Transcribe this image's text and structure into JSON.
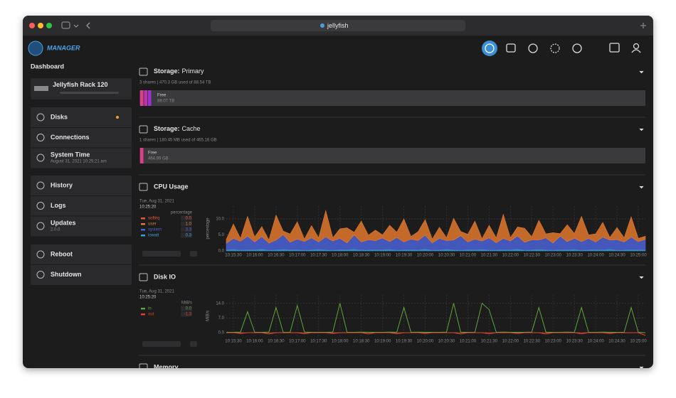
{
  "browser": {
    "url": "jellyfish"
  },
  "sidebar": {
    "brand": "MANAGER",
    "title": "Dashboard",
    "device": "Jellyfish Rack 120",
    "groups": [
      {
        "items": [
          {
            "label": "Disks"
          },
          {
            "label": "Connections"
          },
          {
            "label": "System Time",
            "sub": "August 31, 2021 10:25:21 am"
          }
        ]
      },
      {
        "items": [
          {
            "label": "History"
          },
          {
            "label": "Logs"
          },
          {
            "label": "Updates",
            "sub": "2.0.0"
          }
        ]
      },
      {
        "items": [
          {
            "label": "Reboot"
          },
          {
            "label": "Shutdown"
          }
        ]
      }
    ]
  },
  "storage": [
    {
      "prefix": "Storage:",
      "name": "Primary",
      "summary": "3 shares | 470.3 GB used of 88.54 TB",
      "free_label": "Free",
      "free_value": "88.07 TB"
    },
    {
      "prefix": "Storage:",
      "name": "Cache",
      "summary": "1 shares | 180.45 MB used of 465.16 GB",
      "free_label": "Free",
      "free_value": "464.99 GB"
    }
  ],
  "cpu": {
    "title": "CPU Usage",
    "date": "Tue, Aug 31, 2021",
    "time": "10:25:20",
    "unit": "percentage",
    "ylabel": "percentage",
    "ylim": [
      0,
      14
    ],
    "yticks": [
      {
        "value": 0,
        "label": "0.0"
      },
      {
        "value": 5,
        "label": "5.0"
      },
      {
        "value": 10,
        "label": "10.0"
      }
    ],
    "xlim": [
      0,
      59
    ],
    "xticks": [
      {
        "value": 1,
        "label": "10:15:30"
      },
      {
        "value": 4,
        "label": "10:16:00"
      },
      {
        "value": 7,
        "label": "10:16:30"
      },
      {
        "value": 10,
        "label": "10:17:00"
      },
      {
        "value": 13,
        "label": "10:17:30"
      },
      {
        "value": 16,
        "label": "10:18:00"
      },
      {
        "value": 19,
        "label": "10:18:30"
      },
      {
        "value": 22,
        "label": "10:19:00"
      },
      {
        "value": 25,
        "label": "10:19:30"
      },
      {
        "value": 28,
        "label": "10:20:00"
      },
      {
        "value": 31,
        "label": "10:20:30"
      },
      {
        "value": 34,
        "label": "10:21:00"
      },
      {
        "value": 37,
        "label": "10:21:30"
      },
      {
        "value": 40,
        "label": "10:22:00"
      },
      {
        "value": 43,
        "label": "10:22:30"
      },
      {
        "value": 46,
        "label": "10:23:00"
      },
      {
        "value": 49,
        "label": "10:23:30"
      },
      {
        "value": 52,
        "label": "10:24:00"
      },
      {
        "value": 55,
        "label": "10:24:30"
      },
      {
        "value": 58,
        "label": "10:25:00"
      }
    ],
    "series": [
      {
        "name": "softirq",
        "color": "#e2563a",
        "current": "0.0",
        "values": [
          0,
          0,
          0.1,
          0,
          0,
          0,
          0.1,
          0,
          0,
          0,
          0,
          0.1,
          0,
          0,
          0,
          0,
          0.1,
          0,
          0,
          0,
          0,
          0,
          0.1,
          0,
          0,
          0,
          0,
          0.1,
          0,
          0,
          0,
          0,
          0,
          0.1,
          0,
          0,
          0,
          0,
          0.1,
          0,
          0,
          0,
          0,
          0,
          0.1,
          0,
          0,
          0,
          0,
          0.1,
          0,
          0,
          0,
          0,
          0,
          0.1,
          0,
          0,
          0,
          0
        ]
      },
      {
        "name": "user",
        "color": "#e0782e",
        "current": "1.0",
        "values": [
          1.2,
          4.5,
          0.8,
          6.2,
          1.5,
          3.1,
          0.9,
          7.8,
          1.1,
          2.6,
          5.4,
          0.7,
          3.8,
          1.3,
          8.2,
          1.0,
          2.9,
          4.7,
          0.8,
          6.5,
          1.4,
          3.3,
          0.9,
          5.1,
          1.6,
          7.2,
          0.8,
          2.7,
          4.9,
          1.2,
          3.5,
          0.9,
          6.8,
          1.3,
          2.4,
          5.6,
          0.7,
          3.9,
          1.5,
          7.5,
          1.0,
          2.8,
          4.4,
          0.9,
          6.1,
          1.2,
          3.2,
          0.8,
          5.3,
          1.4,
          7.9,
          1.1,
          2.5,
          4.6,
          0.8,
          3.7,
          1.3,
          6.4,
          1.0,
          1.0
        ]
      },
      {
        "name": "system",
        "color": "#4a63d6",
        "current": "3.3",
        "values": [
          2.1,
          3.4,
          2.8,
          4.2,
          2.5,
          3.9,
          2.2,
          3.1,
          4.6,
          2.4,
          3.3,
          2.7,
          3.8,
          2.3,
          4.1,
          2.9,
          3.5,
          2.2,
          4.4,
          2.6,
          3.2,
          2.8,
          3.7,
          2.4,
          4.0,
          2.5,
          3.3,
          2.9,
          4.3,
          2.3,
          3.6,
          2.7,
          3.1,
          4.5,
          2.4,
          3.4,
          2.6,
          3.9,
          2.2,
          3.5,
          2.8,
          4.1,
          2.5,
          3.2,
          2.9,
          3.8,
          2.3,
          4.2,
          2.6,
          3.4,
          2.7,
          3.6,
          2.4,
          4.0,
          2.8,
          3.3,
          2.5,
          3.9,
          2.6,
          3.3
        ]
      },
      {
        "name": "iowait",
        "color": "#3aa0d8",
        "current": "0.3",
        "values": [
          0.3,
          0.5,
          0.2,
          0.4,
          0.3,
          0.6,
          0.2,
          0.3,
          0.5,
          0.3,
          0.4,
          0.2,
          0.3,
          0.5,
          0.3,
          0.2,
          0.4,
          0.3,
          0.6,
          0.2,
          0.3,
          0.4,
          0.3,
          0.5,
          0.2,
          0.3,
          0.4,
          0.3,
          0.6,
          0.2,
          0.3,
          0.5,
          0.3,
          0.2,
          0.4,
          0.3,
          0.5,
          0.2,
          0.3,
          0.4,
          0.3,
          0.6,
          0.2,
          0.3,
          0.5,
          0.3,
          0.2,
          0.4,
          0.3,
          0.5,
          0.2,
          0.3,
          0.4,
          0.3,
          0.6,
          0.2,
          0.3,
          0.4,
          0.3,
          0.3
        ]
      }
    ]
  },
  "disk": {
    "title": "Disk IO",
    "date": "Tue, Aug 31, 2021",
    "time": "10:25:20",
    "unit": "MiB/s",
    "ylabel": "MiB/s",
    "ylim": [
      -2,
      18
    ],
    "yticks": [
      {
        "value": 0,
        "label": "0.0"
      },
      {
        "value": 7,
        "label": "7.0"
      },
      {
        "value": 14,
        "label": "14.0"
      }
    ],
    "xlim": [
      0,
      59
    ],
    "xticks": [
      {
        "value": 1,
        "label": "10:15:30"
      },
      {
        "value": 4,
        "label": "10:16:00"
      },
      {
        "value": 7,
        "label": "10:16:30"
      },
      {
        "value": 10,
        "label": "10:17:00"
      },
      {
        "value": 13,
        "label": "10:17:30"
      },
      {
        "value": 16,
        "label": "10:18:00"
      },
      {
        "value": 19,
        "label": "10:18:30"
      },
      {
        "value": 22,
        "label": "10:19:00"
      },
      {
        "value": 25,
        "label": "10:19:30"
      },
      {
        "value": 28,
        "label": "10:20:00"
      },
      {
        "value": 31,
        "label": "10:20:30"
      },
      {
        "value": 34,
        "label": "10:21:00"
      },
      {
        "value": 37,
        "label": "10:21:30"
      },
      {
        "value": 40,
        "label": "10:22:00"
      },
      {
        "value": 43,
        "label": "10:22:30"
      },
      {
        "value": 46,
        "label": "10:23:00"
      },
      {
        "value": 49,
        "label": "10:23:30"
      },
      {
        "value": 52,
        "label": "10:24:00"
      },
      {
        "value": 55,
        "label": "10:24:30"
      },
      {
        "value": 58,
        "label": "10:25:00"
      }
    ],
    "series": [
      {
        "name": "in",
        "color": "#5da53c",
        "current": "0.0",
        "values": [
          0.2,
          0.2,
          0.3,
          10,
          0.2,
          0.2,
          0.3,
          12,
          0.2,
          0.2,
          13,
          0.3,
          0.2,
          0.2,
          0.2,
          0.3,
          14,
          0.2,
          0.2,
          0.3,
          0.2,
          0.2,
          0.2,
          0.3,
          0.2,
          12,
          0.2,
          0.3,
          0.2,
          0.2,
          0.2,
          0.3,
          14,
          0.2,
          0.2,
          0.2,
          14,
          11,
          0.2,
          0.3,
          0.2,
          0.2,
          0.2,
          0.3,
          12,
          0.2,
          0.2,
          0.2,
          0.3,
          0.2,
          12,
          0.2,
          0.2,
          0.3,
          0.2,
          0.2,
          0.2,
          12,
          0.2,
          0.0
        ]
      },
      {
        "name": "out",
        "color": "#d8452c",
        "current": "-1.3",
        "values": [
          0,
          0,
          -0.4,
          0,
          0,
          0,
          -0.6,
          0,
          0,
          0,
          0,
          -0.5,
          0,
          0,
          0,
          -0.4,
          0,
          0,
          0,
          0,
          -0.6,
          0,
          0,
          0,
          -0.5,
          0,
          0,
          0,
          -0.4,
          0,
          0,
          0,
          0,
          -0.6,
          0,
          0,
          0,
          -0.5,
          0,
          0,
          0,
          -0.4,
          0,
          0,
          0,
          -0.6,
          0,
          0,
          0,
          0,
          -0.5,
          0,
          0,
          0,
          -0.4,
          0,
          0,
          0,
          0,
          -1.3
        ]
      }
    ]
  },
  "memory": {
    "title": "Memory"
  }
}
